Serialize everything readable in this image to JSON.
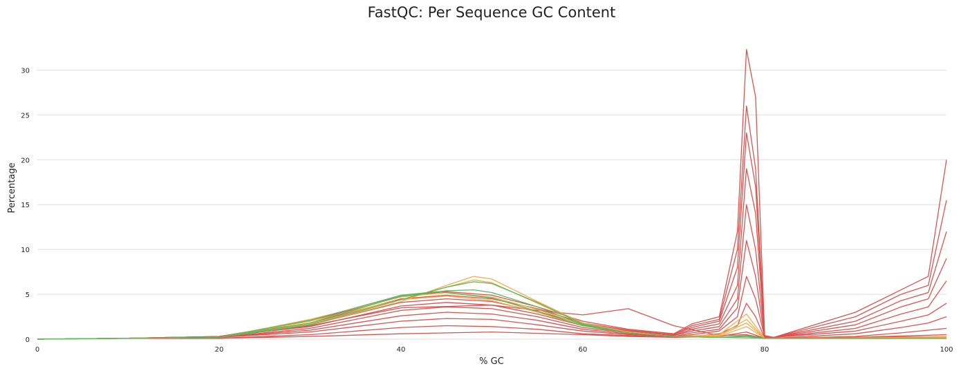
{
  "chart_data": {
    "type": "line",
    "title": "FastQC: Per Sequence GC Content",
    "xlabel": "% GC",
    "ylabel": "Percentage",
    "xlim": [
      0,
      100
    ],
    "ylim": [
      0,
      33.5
    ],
    "x_ticks": [
      0,
      20,
      40,
      60,
      80,
      100
    ],
    "y_ticks": [
      0,
      5,
      10,
      15,
      20,
      25,
      30
    ],
    "grid": "horizontal",
    "legend": "none",
    "status_colors": {
      "pass": "#5cb85c",
      "warn": "#f0ad4e",
      "fail": "#d9534f"
    },
    "series": [
      {
        "status": "fail",
        "x": [
          0,
          10,
          20,
          30,
          40,
          45,
          50,
          55,
          60,
          65,
          70,
          72,
          75,
          77,
          78,
          79,
          80,
          81,
          90,
          95,
          98,
          100
        ],
        "y": [
          0,
          0.1,
          0.3,
          2.0,
          4.8,
          5.3,
          4.9,
          3.6,
          2.0,
          1.1,
          0.6,
          1.7,
          2.5,
          12,
          32.3,
          27,
          0.4,
          0.2,
          3.0,
          5.5,
          7.0,
          20.0
        ]
      },
      {
        "status": "fail",
        "x": [
          0,
          10,
          20,
          30,
          40,
          45,
          50,
          55,
          60,
          65,
          70,
          72,
          75,
          77,
          78,
          79,
          80,
          81,
          90,
          95,
          98,
          100
        ],
        "y": [
          0,
          0.1,
          0.3,
          1.8,
          4.5,
          4.9,
          4.5,
          3.4,
          1.8,
          1.0,
          0.5,
          1.5,
          2.2,
          10,
          26,
          19,
          0.3,
          0.2,
          2.5,
          5.0,
          6.0,
          15.5
        ]
      },
      {
        "status": "fail",
        "x": [
          0,
          10,
          20,
          30,
          40,
          45,
          50,
          55,
          60,
          65,
          70,
          72,
          75,
          77,
          78,
          79,
          80,
          81,
          90,
          95,
          98,
          100
        ],
        "y": [
          0,
          0.1,
          0.3,
          1.6,
          4.1,
          4.5,
          4.2,
          3.1,
          1.7,
          0.9,
          0.5,
          1.3,
          2.0,
          8,
          23,
          17,
          0.3,
          0.2,
          2.0,
          4.3,
          5.2,
          12.0
        ]
      },
      {
        "status": "fail",
        "x": [
          0,
          10,
          20,
          30,
          40,
          45,
          50,
          55,
          60,
          65,
          70,
          72,
          75,
          77,
          78,
          79,
          80,
          81,
          90,
          95,
          98,
          100
        ],
        "y": [
          0,
          0.1,
          0.3,
          1.4,
          3.7,
          4.1,
          3.8,
          2.8,
          1.5,
          0.8,
          0.4,
          1.1,
          1.7,
          6,
          19,
          14,
          0.3,
          0.2,
          1.6,
          3.6,
          4.5,
          9.0
        ]
      },
      {
        "status": "fail",
        "x": [
          0,
          10,
          20,
          30,
          40,
          45,
          50,
          55,
          60,
          65,
          70,
          72,
          75,
          77,
          78,
          79,
          80,
          81,
          90,
          95,
          98,
          100
        ],
        "y": [
          0,
          0.1,
          0.2,
          1.2,
          3.2,
          3.6,
          3.4,
          2.5,
          1.3,
          0.7,
          0.4,
          0.9,
          1.4,
          4.5,
          15,
          10,
          0.3,
          0.2,
          1.2,
          2.8,
          3.6,
          6.5
        ]
      },
      {
        "status": "fail",
        "x": [
          0,
          10,
          20,
          30,
          40,
          45,
          50,
          55,
          60,
          65,
          70,
          72,
          75,
          77,
          78,
          79,
          80,
          81,
          90,
          95,
          98,
          100
        ],
        "y": [
          0,
          0.1,
          0.2,
          1.0,
          2.6,
          3.0,
          2.8,
          2.1,
          1.1,
          0.6,
          0.3,
          0.7,
          1.1,
          3.5,
          11,
          7,
          0.2,
          0.2,
          0.9,
          2.0,
          2.7,
          4.0
        ]
      },
      {
        "status": "fail",
        "x": [
          0,
          10,
          20,
          30,
          40,
          45,
          50,
          55,
          60,
          65,
          70,
          72,
          75,
          77,
          78,
          79,
          80,
          81,
          90,
          95,
          98,
          100
        ],
        "y": [
          0,
          0.1,
          0.2,
          0.8,
          2.0,
          2.3,
          2.2,
          1.6,
          0.9,
          0.5,
          0.3,
          0.5,
          0.9,
          2.5,
          7,
          4.5,
          0.2,
          0.1,
          0.6,
          1.3,
          1.8,
          2.5
        ]
      },
      {
        "status": "fail",
        "x": [
          0,
          10,
          20,
          30,
          40,
          45,
          50,
          55,
          60,
          65,
          70,
          72,
          75,
          77,
          78,
          79,
          80,
          81,
          90,
          95,
          98,
          100
        ],
        "y": [
          0,
          0.1,
          0.1,
          0.5,
          1.3,
          1.5,
          1.4,
          1.1,
          0.6,
          0.4,
          0.2,
          0.3,
          0.6,
          1.5,
          4,
          2.5,
          0.1,
          0.1,
          0.3,
          0.7,
          1.0,
          1.2
        ]
      },
      {
        "status": "fail",
        "x": [
          0,
          10,
          20,
          30,
          40,
          50,
          60,
          65,
          70,
          75,
          78,
          80,
          90,
          100
        ],
        "y": [
          0,
          0.1,
          0.1,
          0.3,
          0.6,
          0.8,
          0.5,
          0.3,
          0.2,
          0.3,
          0.8,
          0.1,
          0.2,
          0.5
        ]
      },
      {
        "status": "fail",
        "x": [
          0,
          20,
          30,
          40,
          50,
          55,
          60,
          65,
          70,
          75,
          78,
          80,
          100
        ],
        "y": [
          0,
          0.2,
          1.5,
          3.5,
          3.8,
          3.2,
          2.7,
          3.4,
          1.5,
          0.4,
          0.5,
          0.1,
          0.3
        ]
      },
      {
        "status": "warn",
        "x": [
          0,
          10,
          20,
          30,
          40,
          45,
          48,
          50,
          55,
          60,
          65,
          70,
          75,
          78,
          80,
          90,
          100
        ],
        "y": [
          0,
          0.1,
          0.2,
          1.6,
          4.2,
          6.0,
          7.0,
          6.7,
          4.2,
          1.8,
          0.8,
          0.3,
          0.5,
          2.8,
          0.1,
          0.1,
          0.3
        ]
      },
      {
        "status": "warn",
        "x": [
          0,
          10,
          20,
          30,
          40,
          45,
          48,
          50,
          55,
          60,
          65,
          70,
          75,
          78,
          80,
          90,
          100
        ],
        "y": [
          0,
          0.1,
          0.2,
          1.7,
          4.4,
          5.8,
          6.6,
          6.3,
          4.0,
          1.7,
          0.8,
          0.3,
          0.4,
          2.2,
          0.1,
          0.1,
          0.2
        ]
      },
      {
        "status": "warn",
        "x": [
          0,
          10,
          20,
          30,
          40,
          45,
          50,
          55,
          60,
          65,
          70,
          75,
          78,
          80,
          100
        ],
        "y": [
          0,
          0.1,
          0.2,
          2.2,
          4.7,
          5.2,
          4.7,
          3.3,
          1.6,
          0.8,
          0.3,
          0.4,
          1.8,
          0.1,
          0.2
        ]
      },
      {
        "status": "warn",
        "x": [
          0,
          10,
          20,
          30,
          40,
          45,
          50,
          55,
          60,
          65,
          70,
          75,
          78,
          80,
          100
        ],
        "y": [
          0,
          0.1,
          0.2,
          2.0,
          4.4,
          4.8,
          4.3,
          3.0,
          1.5,
          0.7,
          0.3,
          0.3,
          1.4,
          0.1,
          0.2
        ]
      },
      {
        "status": "pass",
        "x": [
          0,
          10,
          20,
          30,
          40,
          45,
          48,
          50,
          55,
          60,
          65,
          70,
          75,
          78,
          80,
          100
        ],
        "y": [
          0,
          0.1,
          0.2,
          1.8,
          4.8,
          5.4,
          5.5,
          5.2,
          3.6,
          1.6,
          0.7,
          0.3,
          0.2,
          0.4,
          0.1,
          0.1
        ]
      },
      {
        "status": "pass",
        "x": [
          0,
          10,
          20,
          30,
          40,
          45,
          48,
          50,
          55,
          60,
          65,
          70,
          75,
          78,
          80,
          100
        ],
        "y": [
          0,
          0.1,
          0.2,
          1.6,
          4.4,
          5.8,
          6.4,
          6.2,
          4.1,
          1.7,
          0.7,
          0.3,
          0.2,
          0.3,
          0.1,
          0.1
        ]
      },
      {
        "status": "pass",
        "x": [
          0,
          10,
          20,
          30,
          40,
          44,
          50,
          55,
          60,
          65,
          70,
          75,
          80,
          100
        ],
        "y": [
          0,
          0.1,
          0.2,
          2.1,
          4.9,
          5.3,
          4.6,
          3.1,
          1.5,
          0.7,
          0.3,
          0.2,
          0.1,
          0.1
        ]
      }
    ]
  }
}
